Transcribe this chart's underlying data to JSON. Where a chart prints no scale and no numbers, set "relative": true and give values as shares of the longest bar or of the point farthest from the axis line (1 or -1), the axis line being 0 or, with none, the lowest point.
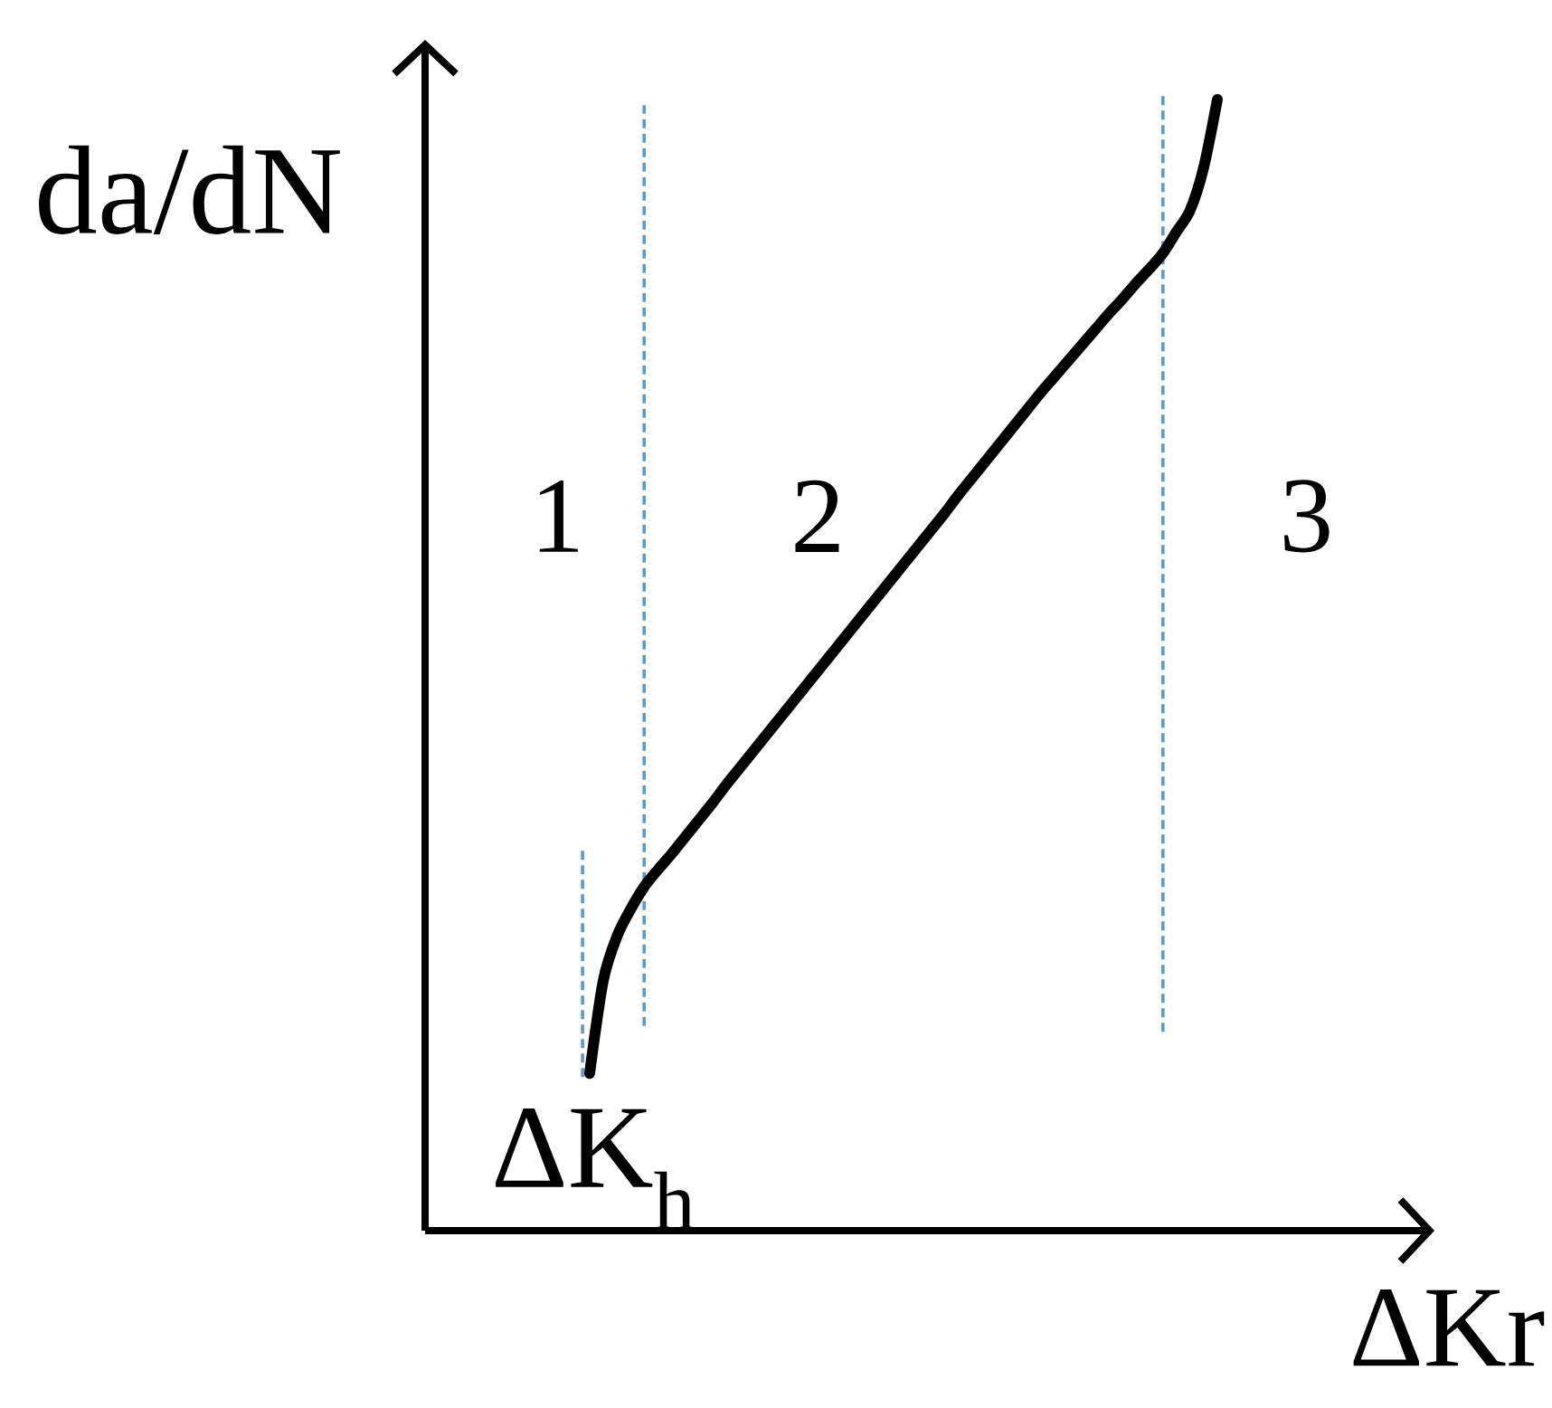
{
  "chart_data": {
    "type": "line",
    "relative": true,
    "xlabel": "ΔKr",
    "ylabel": "da/dN",
    "annotations": [
      "1",
      "2",
      "3",
      "ΔK$_{h}$"
    ],
    "categories": [
      null,
      null,
      null,
      null,
      null,
      null,
      null,
      null,
      null,
      null,
      null,
      null,
      null,
      null,
      null,
      null,
      null,
      null,
      null,
      null,
      null,
      null,
      null,
      null,
      null,
      null,
      null,
      null,
      null,
      null,
      null,
      null,
      null,
      null,
      null,
      null,
      null,
      null,
      null,
      null,
      null,
      null,
      null,
      null,
      null,
      null,
      null
    ],
    "series": [
      {
        "color": "#000000",
        "values": [
          0.139,
          0.221,
          0.26,
          0.284,
          0.304,
          0.319,
          0.333,
          0.348,
          0.363,
          0.378,
          0.394,
          0.409,
          0.424,
          0.439,
          0.454,
          0.469,
          0.484,
          0.499,
          0.514,
          0.529,
          0.544,
          0.559,
          0.574,
          0.589,
          0.604,
          0.619,
          0.634,
          0.65,
          0.665,
          0.68,
          0.695,
          0.71,
          0.725,
          0.74,
          0.754,
          0.768,
          0.782,
          0.796,
          0.81,
          0.823,
          0.837,
          0.85,
          0.864,
          0.883,
          0.902,
          0.94,
          1
        ]
      }
    ]
  }
}
